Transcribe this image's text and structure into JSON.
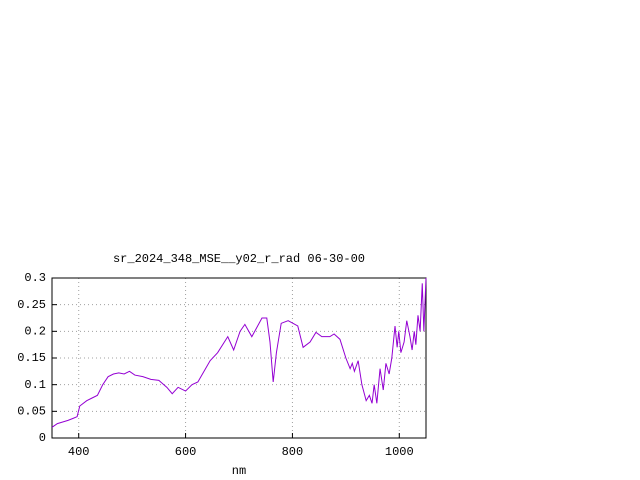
{
  "chart_data": {
    "type": "line",
    "title": "sr_2024_348_MSE__y02_r_rad 06-30-00",
    "x_label": "nm",
    "x": [
      350,
      360,
      370,
      380,
      390,
      397,
      402,
      415,
      425,
      435,
      445,
      455,
      465,
      475,
      485,
      495,
      505,
      520,
      535,
      550,
      565,
      575,
      586,
      600,
      612,
      623,
      646,
      660,
      679,
      690,
      702,
      711,
      724,
      743,
      752,
      758,
      764,
      770,
      779,
      792,
      810,
      820,
      833,
      844,
      855,
      870,
      878,
      889,
      900,
      908,
      912,
      916,
      923,
      930,
      938,
      944,
      949,
      953,
      958,
      964,
      970,
      975,
      981,
      986,
      992,
      996,
      999,
      1003,
      1009,
      1014,
      1020,
      1024,
      1028,
      1031,
      1035,
      1039,
      1043,
      1046,
      1050
    ],
    "series": [
      {
        "name": "sr_2024_348_MSE__y02_r_rad",
        "color": "#9400d3",
        "values": [
          0.02,
          0.027,
          0.03,
          0.033,
          0.037,
          0.04,
          0.06,
          0.07,
          0.075,
          0.08,
          0.1,
          0.115,
          0.12,
          0.122,
          0.12,
          0.125,
          0.118,
          0.115,
          0.11,
          0.108,
          0.095,
          0.083,
          0.095,
          0.088,
          0.1,
          0.105,
          0.145,
          0.16,
          0.19,
          0.165,
          0.2,
          0.213,
          0.19,
          0.225,
          0.225,
          0.18,
          0.105,
          0.16,
          0.215,
          0.22,
          0.21,
          0.17,
          0.18,
          0.198,
          0.19,
          0.19,
          0.195,
          0.185,
          0.15,
          0.13,
          0.14,
          0.125,
          0.145,
          0.1,
          0.07,
          0.08,
          0.065,
          0.1,
          0.065,
          0.13,
          0.09,
          0.14,
          0.12,
          0.15,
          0.21,
          0.17,
          0.2,
          0.16,
          0.18,
          0.22,
          0.19,
          0.165,
          0.2,
          0.175,
          0.23,
          0.2,
          0.29,
          0.2,
          0.3
        ]
      }
    ],
    "xlim": [
      350,
      1050
    ],
    "ylim": [
      0,
      0.3
    ],
    "xticks": [
      400,
      600,
      800,
      1000
    ],
    "yticks": [
      0,
      0.05,
      0.1,
      0.15,
      0.2,
      0.25,
      0.3
    ],
    "grid": true
  }
}
